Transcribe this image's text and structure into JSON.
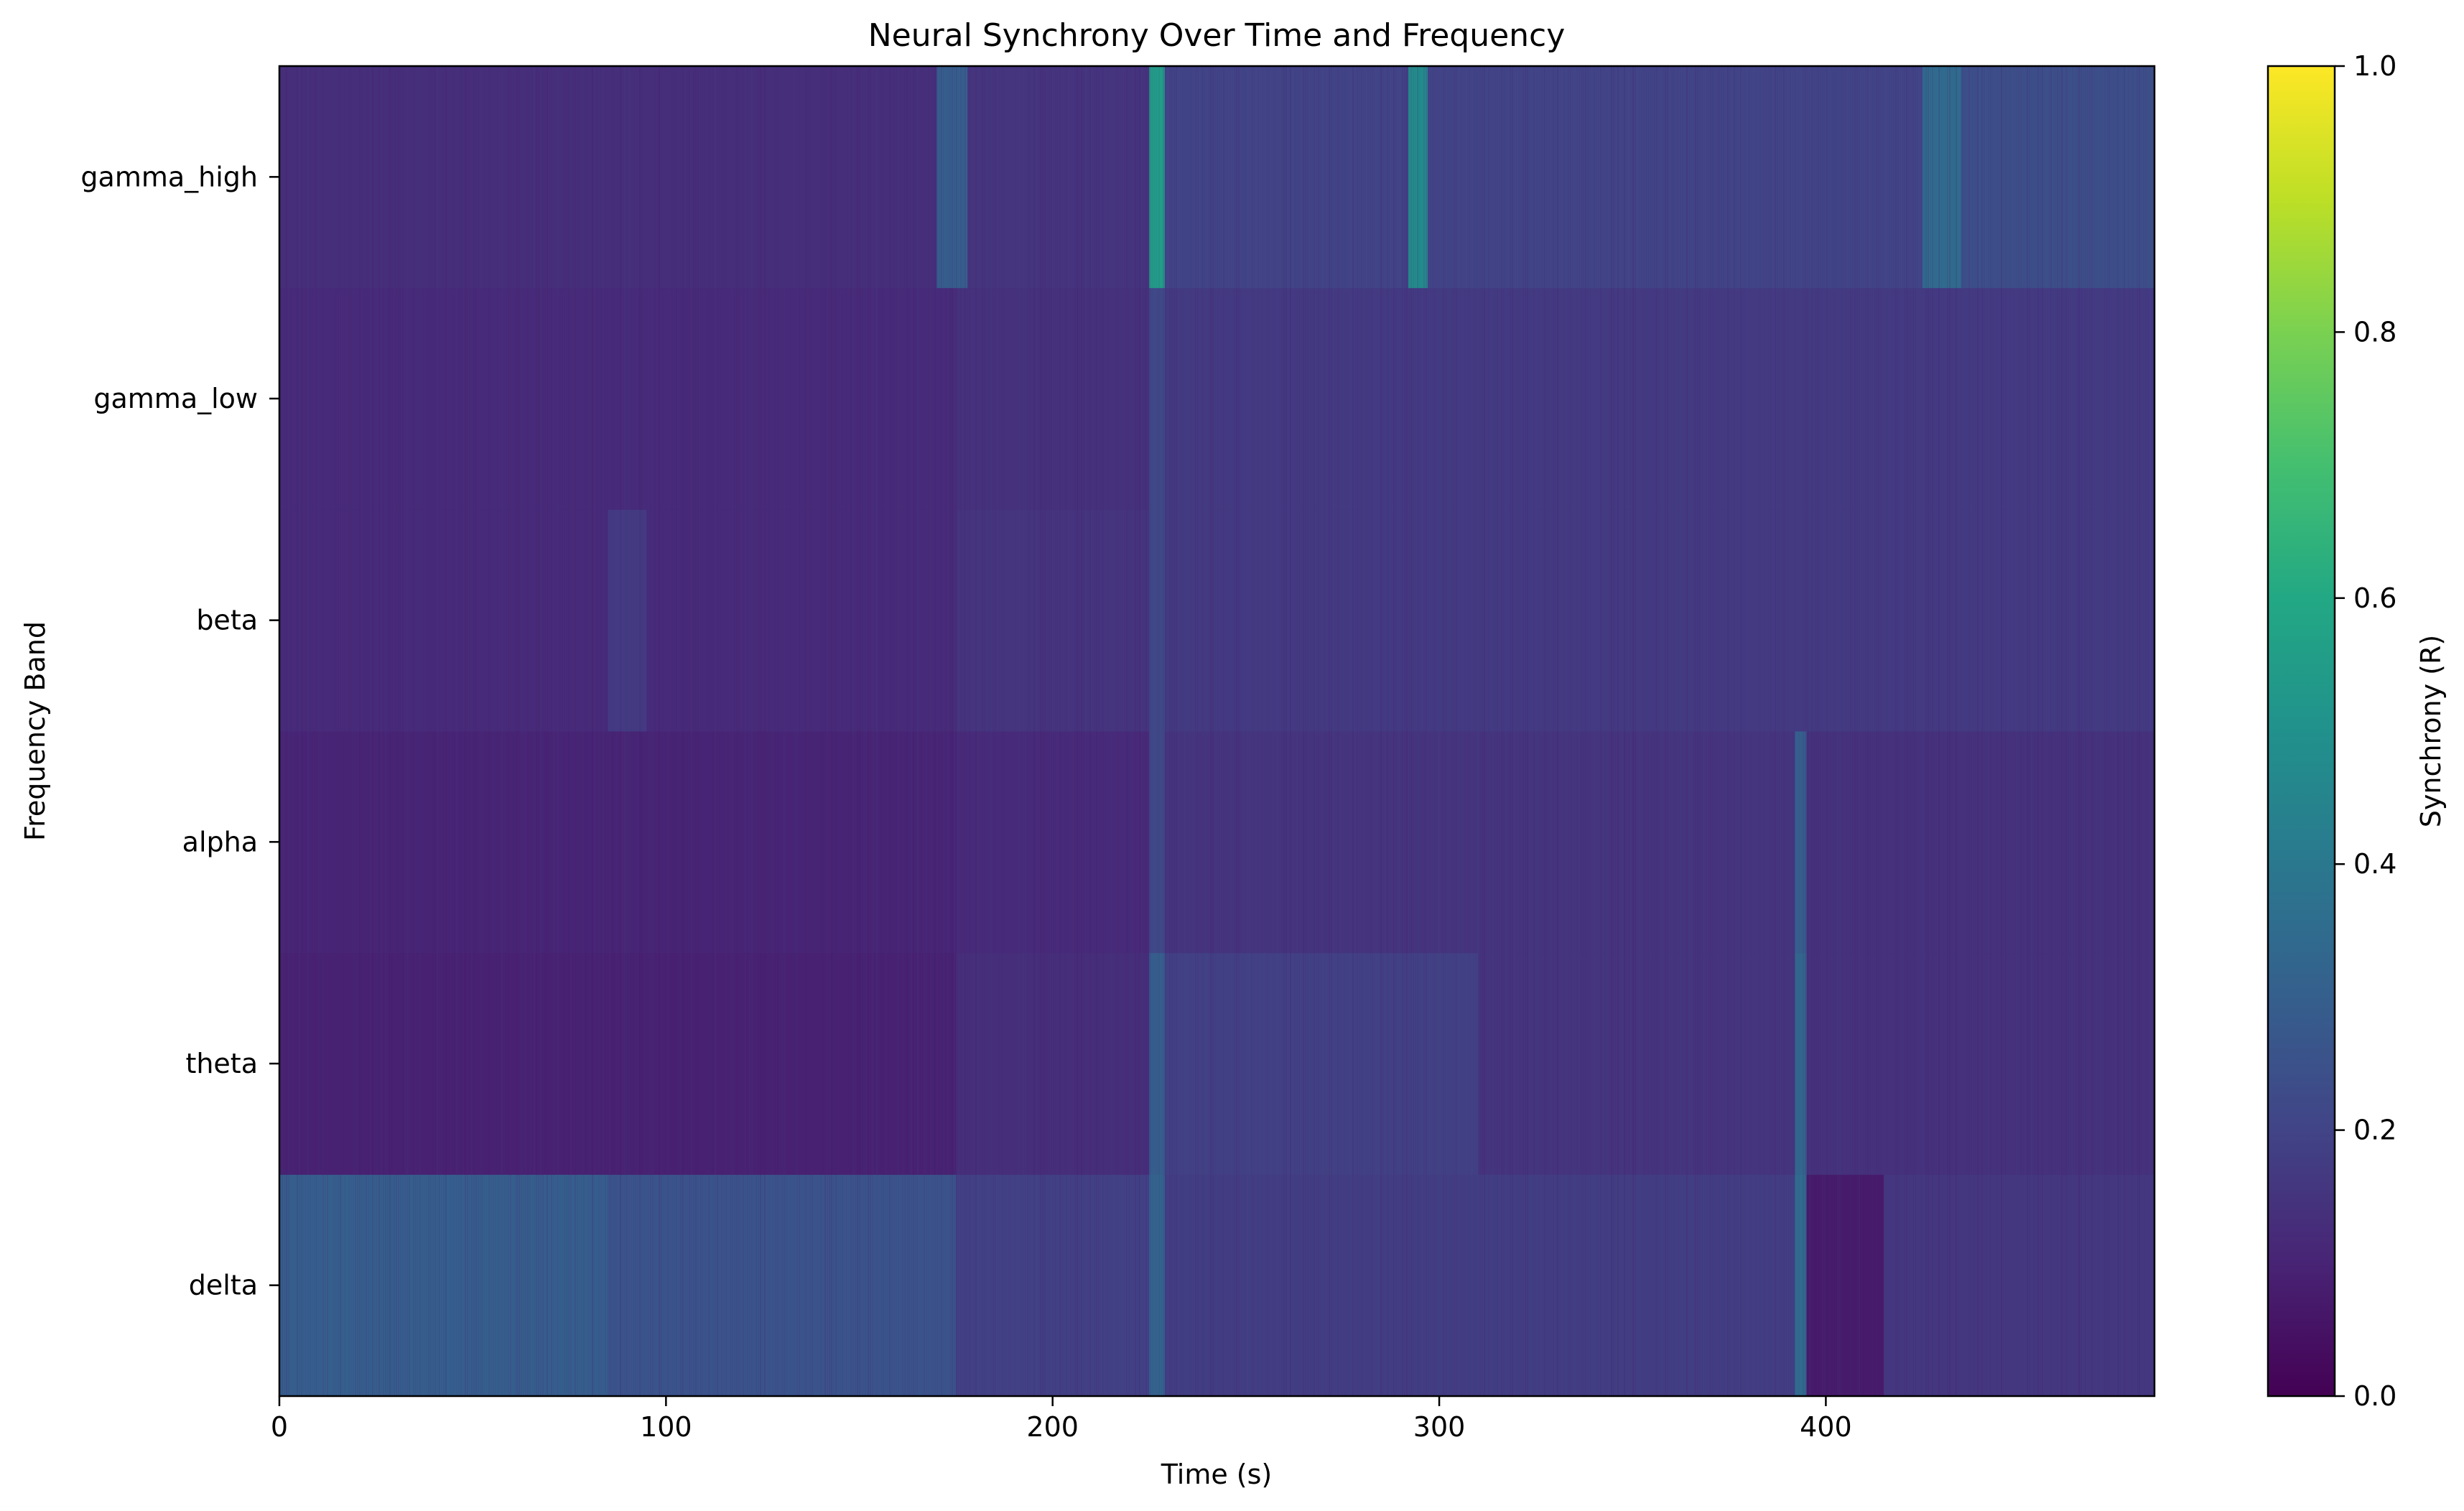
{
  "chart_data": {
    "type": "heatmap",
    "title": "Neural Synchrony Over Time and Frequency",
    "xlabel": "Time (s)",
    "ylabel": "Frequency Band",
    "xlim": [
      0,
      485
    ],
    "x_ticks": [
      0,
      100,
      200,
      300,
      400
    ],
    "y_categories": [
      "delta",
      "theta",
      "alpha",
      "beta",
      "gamma_low",
      "gamma_high"
    ],
    "colorbar": {
      "label": "Synchrony (R)",
      "range": [
        0.0,
        1.0
      ],
      "ticks": [
        "0.0",
        "0.2",
        "0.4",
        "0.6",
        "0.8",
        "1.0"
      ],
      "colormap": "viridis"
    },
    "grid": false,
    "series": [
      {
        "band": "delta",
        "segments": [
          {
            "t0": 0,
            "t1": 85,
            "value": 0.3
          },
          {
            "t0": 85,
            "t1": 175,
            "value": 0.26
          },
          {
            "t0": 175,
            "t1": 225,
            "value": 0.19
          },
          {
            "t0": 225,
            "t1": 229,
            "value": 0.32
          },
          {
            "t0": 229,
            "t1": 392,
            "value": 0.18
          },
          {
            "t0": 392,
            "t1": 395,
            "value": 0.35
          },
          {
            "t0": 395,
            "t1": 415,
            "value": 0.07
          },
          {
            "t0": 415,
            "t1": 485,
            "value": 0.16
          }
        ]
      },
      {
        "band": "theta",
        "segments": [
          {
            "t0": 0,
            "t1": 175,
            "value": 0.09
          },
          {
            "t0": 175,
            "t1": 225,
            "value": 0.13
          },
          {
            "t0": 225,
            "t1": 229,
            "value": 0.3
          },
          {
            "t0": 229,
            "t1": 310,
            "value": 0.19
          },
          {
            "t0": 310,
            "t1": 392,
            "value": 0.15
          },
          {
            "t0": 392,
            "t1": 395,
            "value": 0.33
          },
          {
            "t0": 395,
            "t1": 485,
            "value": 0.14
          }
        ]
      },
      {
        "band": "alpha",
        "segments": [
          {
            "t0": 0,
            "t1": 175,
            "value": 0.1
          },
          {
            "t0": 175,
            "t1": 225,
            "value": 0.12
          },
          {
            "t0": 225,
            "t1": 229,
            "value": 0.22
          },
          {
            "t0": 229,
            "t1": 392,
            "value": 0.15
          },
          {
            "t0": 392,
            "t1": 395,
            "value": 0.3
          },
          {
            "t0": 395,
            "t1": 485,
            "value": 0.14
          }
        ]
      },
      {
        "band": "beta",
        "segments": [
          {
            "t0": 0,
            "t1": 85,
            "value": 0.12
          },
          {
            "t0": 85,
            "t1": 95,
            "value": 0.17
          },
          {
            "t0": 95,
            "t1": 175,
            "value": 0.12
          },
          {
            "t0": 175,
            "t1": 225,
            "value": 0.15
          },
          {
            "t0": 225,
            "t1": 229,
            "value": 0.22
          },
          {
            "t0": 229,
            "t1": 485,
            "value": 0.17
          }
        ]
      },
      {
        "band": "gamma_low",
        "segments": [
          {
            "t0": 0,
            "t1": 175,
            "value": 0.12
          },
          {
            "t0": 175,
            "t1": 225,
            "value": 0.14
          },
          {
            "t0": 225,
            "t1": 229,
            "value": 0.22
          },
          {
            "t0": 229,
            "t1": 485,
            "value": 0.17
          }
        ]
      },
      {
        "band": "gamma_high",
        "segments": [
          {
            "t0": 0,
            "t1": 170,
            "value": 0.13
          },
          {
            "t0": 170,
            "t1": 178,
            "value": 0.3
          },
          {
            "t0": 178,
            "t1": 225,
            "value": 0.15
          },
          {
            "t0": 225,
            "t1": 229,
            "value": 0.55
          },
          {
            "t0": 229,
            "t1": 292,
            "value": 0.2
          },
          {
            "t0": 292,
            "t1": 297,
            "value": 0.48
          },
          {
            "t0": 297,
            "t1": 425,
            "value": 0.2
          },
          {
            "t0": 425,
            "t1": 435,
            "value": 0.35
          },
          {
            "t0": 435,
            "t1": 485,
            "value": 0.24
          }
        ]
      }
    ]
  }
}
